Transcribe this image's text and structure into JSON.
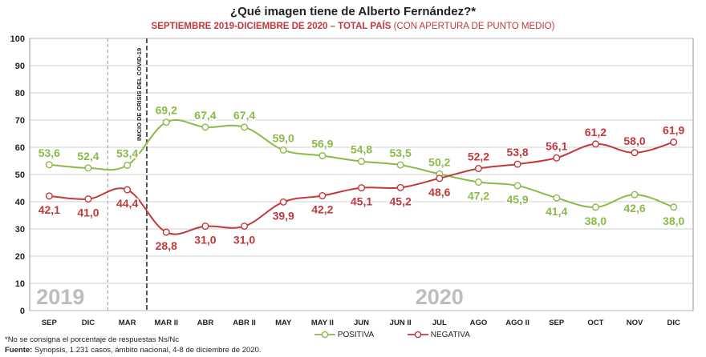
{
  "title": "¿Qué imagen tiene de Alberto Fernández?*",
  "subtitle_main": "SEPTIEMBRE 2019-DICIEMBRE DE 2020 – TOTAL PAÍS",
  "subtitle_extra": "(CON APERTURA DE PUNTO MEDIO)",
  "footnote": "*No se consigna el porcentaje de respuestas Ns/Nc",
  "source_label": "Fuente:",
  "source_text": "Synopsis, 1.231 casos, ámbito nacional, 4-8 de diciembre de 2020.",
  "covid_annotation": "INICIO DE CRISIS DEL COVID-19",
  "year_labels": [
    "2019",
    "2020"
  ],
  "colors": {
    "positiva": "#8cba4a",
    "negativa": "#c0393b",
    "grid": "#bfbfbf",
    "year": "#bdbdbd"
  },
  "chart_data": {
    "type": "line",
    "title": "¿Qué imagen tiene de Alberto Fernández?*",
    "categories": [
      "SEP",
      "DIC",
      "MAR",
      "MAR II",
      "ABR",
      "ABR II",
      "MAY",
      "MAY II",
      "JUN",
      "JUN II",
      "JUL",
      "AGO",
      "AGO II",
      "SEP",
      "OCT",
      "NOV",
      "DIC"
    ],
    "series": [
      {
        "name": "POSITIVA",
        "values": [
          53.6,
          52.4,
          53.4,
          69.2,
          67.4,
          67.4,
          59.0,
          56.9,
          54.8,
          53.5,
          50.2,
          47.2,
          45.9,
          41.4,
          38.0,
          42.6,
          38.0
        ],
        "labels": [
          "53,6",
          "52,4",
          "53,4",
          "69,2",
          "67,4",
          "67,4",
          "59,0",
          "56,9",
          "54,8",
          "53,5",
          "50,2",
          "47,2",
          "45,9",
          "41,4",
          "38,0",
          "42,6",
          "38,0"
        ]
      },
      {
        "name": "NEGATIVA",
        "values": [
          42.1,
          41.0,
          44.4,
          28.8,
          31.0,
          31.0,
          39.9,
          42.2,
          45.1,
          45.2,
          48.6,
          52.2,
          53.8,
          56.1,
          61.2,
          58.0,
          61.9
        ],
        "labels": [
          "42,1",
          "41,0",
          "44,4",
          "28,8",
          "31,0",
          "31,0",
          "39,9",
          "42,2",
          "45,1",
          "45,2",
          "48,6",
          "52,2",
          "53,8",
          "56,1",
          "61,2",
          "58,0",
          "61,9"
        ]
      }
    ],
    "ylim": [
      0,
      100
    ],
    "yticks": [
      "0",
      "10",
      "20",
      "30",
      "40",
      "50",
      "60",
      "70",
      "80",
      "90",
      "100"
    ],
    "grid": true,
    "legend_position": "bottom"
  }
}
